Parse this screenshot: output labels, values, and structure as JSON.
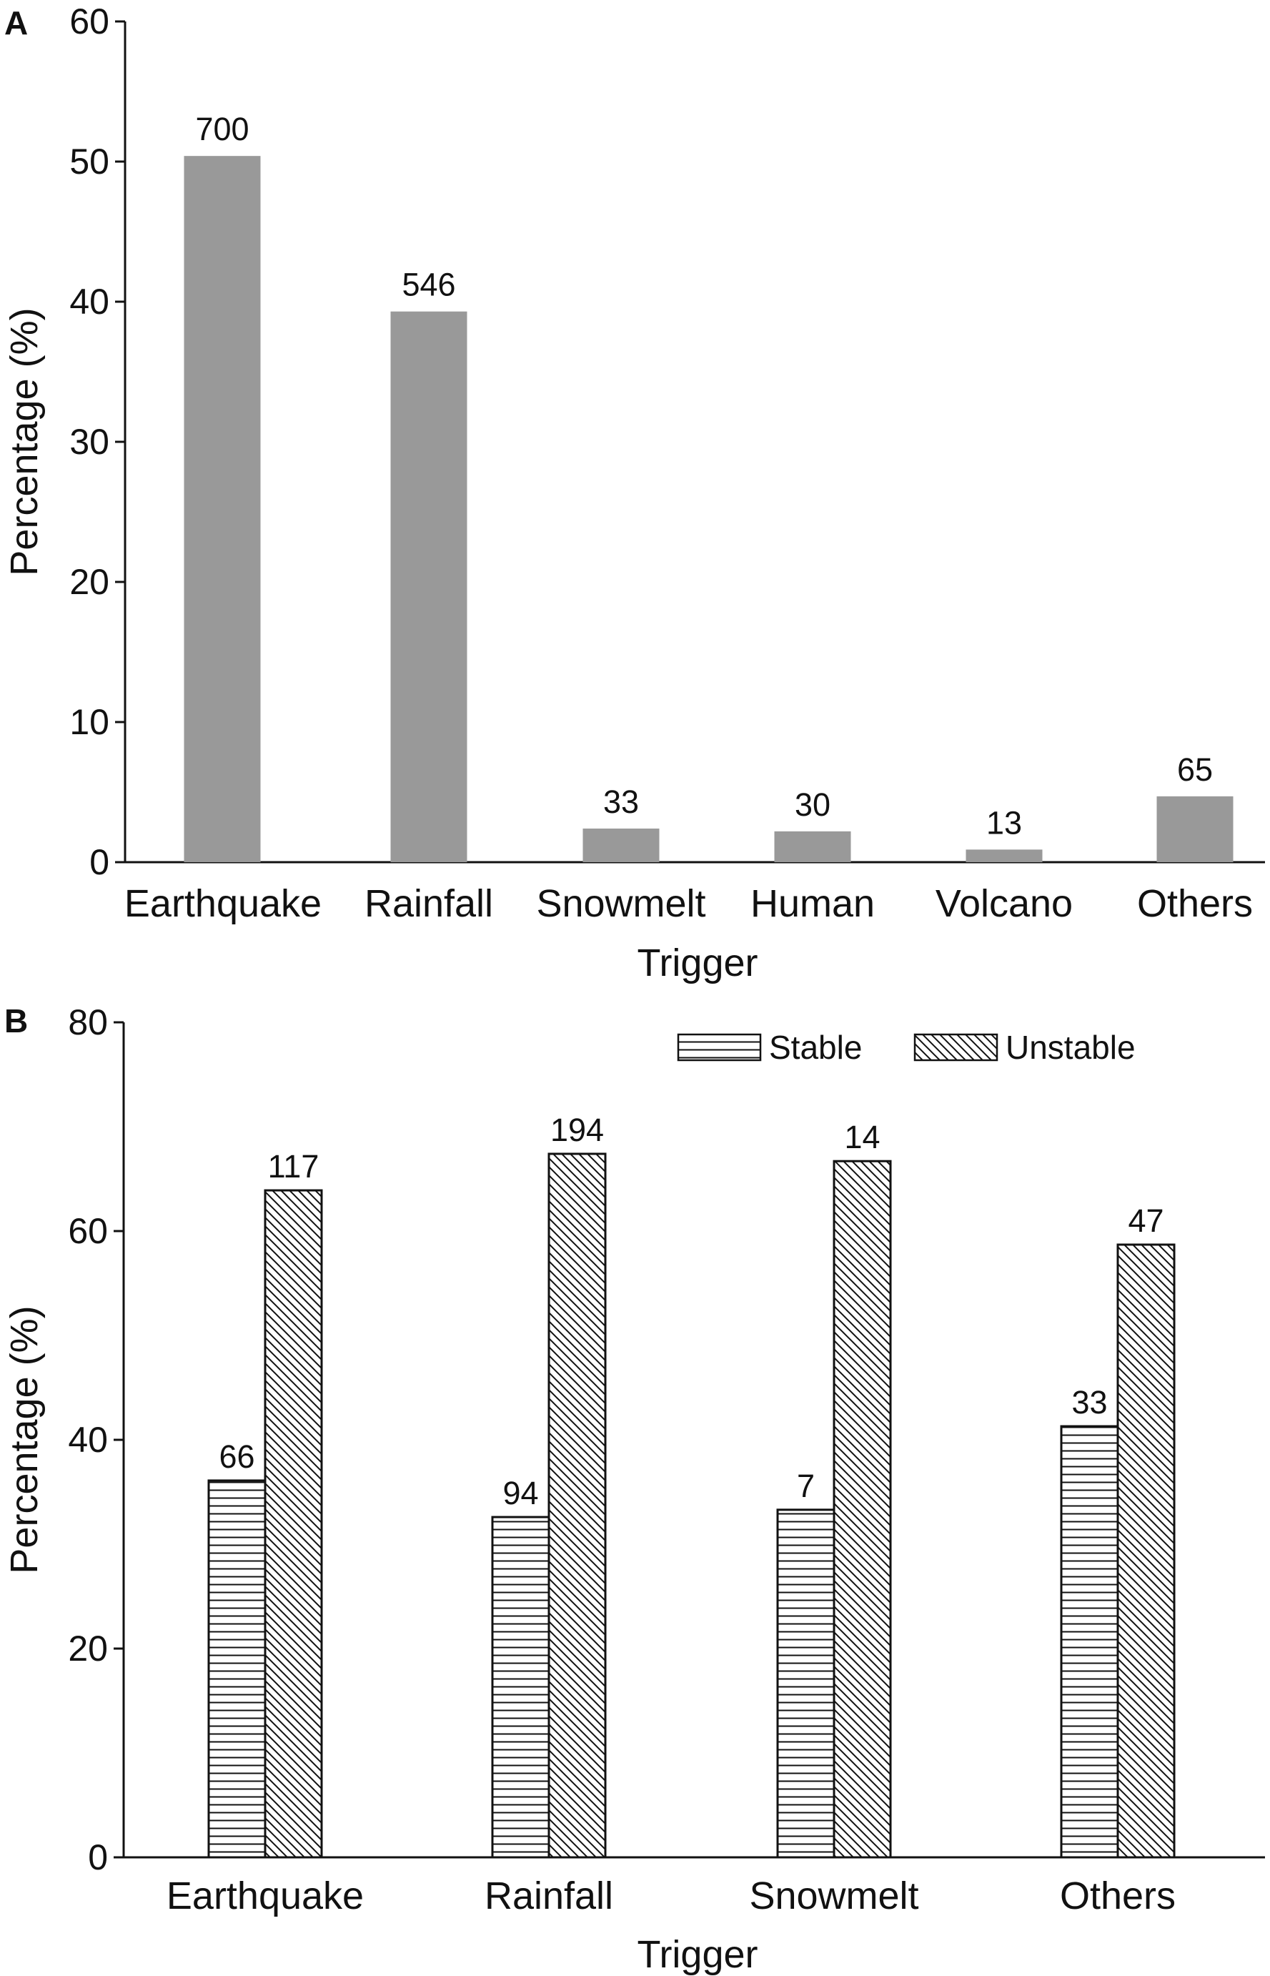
{
  "chart_data": [
    {
      "panel": "A",
      "type": "bar",
      "xlabel": "Trigger",
      "ylabel": "Percentage (%)",
      "ylim": [
        0,
        60
      ],
      "yticks": [
        0,
        10,
        20,
        30,
        40,
        50,
        60
      ],
      "categories": [
        "Earthquake",
        "Rainfall",
        "Snowmelt",
        "Human",
        "Volcano",
        "Others"
      ],
      "values": [
        50.4,
        39.3,
        2.4,
        2.2,
        0.9,
        4.7
      ],
      "data_labels": [
        "700",
        "546",
        "33",
        "30",
        "13",
        "65"
      ],
      "bar_color": "#999999"
    },
    {
      "panel": "B",
      "type": "bar",
      "xlabel": "Trigger",
      "ylabel": "Percentage (%)",
      "ylim": [
        0,
        80
      ],
      "yticks": [
        0,
        20,
        40,
        60,
        80
      ],
      "categories": [
        "Earthquake",
        "Rainfall",
        "Snowmelt",
        "Others"
      ],
      "legend_position": "top-right",
      "series": [
        {
          "name": "Stable",
          "pattern": "horizontal-lines",
          "values": [
            36.1,
            32.6,
            33.3,
            41.3
          ],
          "data_labels": [
            "66",
            "94",
            "7",
            "33"
          ]
        },
        {
          "name": "Unstable",
          "pattern": "diagonal-lines",
          "values": [
            63.9,
            67.4,
            66.7,
            58.7
          ],
          "data_labels": [
            "117",
            "194",
            "14",
            "47"
          ]
        }
      ]
    }
  ]
}
